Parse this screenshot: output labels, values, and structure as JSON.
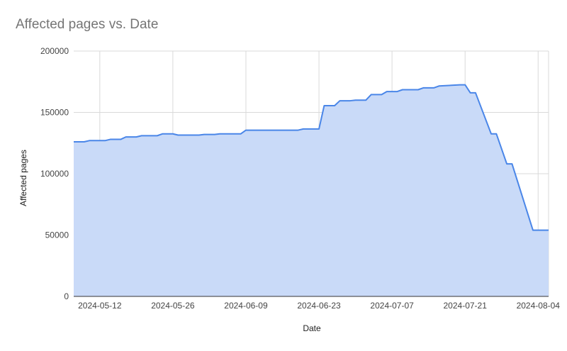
{
  "chart_data": {
    "type": "area",
    "title": "Affected pages vs. Date",
    "xlabel": "Date",
    "ylabel": "Affected pages",
    "ylim": [
      0,
      200000
    ],
    "yticks": [
      "0",
      "50000",
      "100000",
      "150000",
      "200000"
    ],
    "xlim": [
      "2024-05-07",
      "2024-08-06"
    ],
    "xticks": [
      "2024-05-12",
      "2024-05-26",
      "2024-06-09",
      "2024-06-23",
      "2024-07-07",
      "2024-07-21",
      "2024-08-04"
    ],
    "grid": true,
    "line_color": "#4a86e8",
    "fill_color": "#c9daf8",
    "series": [
      {
        "x": [
          "2024-05-07",
          "2024-05-09",
          "2024-05-10",
          "2024-05-13",
          "2024-05-14",
          "2024-05-16",
          "2024-05-17",
          "2024-05-19",
          "2024-05-20",
          "2024-05-23",
          "2024-05-24",
          "2024-05-26",
          "2024-05-27",
          "2024-05-31",
          "2024-06-01",
          "2024-06-03",
          "2024-06-04",
          "2024-06-08",
          "2024-06-09",
          "2024-06-11",
          "2024-06-12",
          "2024-06-19",
          "2024-06-20",
          "2024-06-23",
          "2024-06-24",
          "2024-06-26",
          "2024-06-27",
          "2024-06-29",
          "2024-06-30",
          "2024-07-02",
          "2024-07-03",
          "2024-07-05",
          "2024-07-06",
          "2024-07-08",
          "2024-07-09",
          "2024-07-12",
          "2024-07-13",
          "2024-07-15",
          "2024-07-16",
          "2024-07-20",
          "2024-07-21",
          "2024-07-22",
          "2024-07-23",
          "2024-07-26",
          "2024-07-27",
          "2024-07-29",
          "2024-07-30",
          "2024-08-03",
          "2024-08-04",
          "2024-08-06"
        ],
        "values": [
          126000,
          126000,
          127000,
          127000,
          128000,
          128000,
          130000,
          130000,
          131000,
          131000,
          132500,
          132500,
          131500,
          131500,
          132000,
          132000,
          132500,
          132500,
          135500,
          135500,
          135500,
          135500,
          136500,
          136500,
          155500,
          155500,
          159500,
          159500,
          160000,
          160000,
          164500,
          164500,
          167000,
          167000,
          168500,
          168500,
          170000,
          170000,
          171500,
          172500,
          172500,
          166000,
          166000,
          132500,
          132500,
          108000,
          108000,
          54000,
          54000,
          54000
        ]
      }
    ]
  }
}
